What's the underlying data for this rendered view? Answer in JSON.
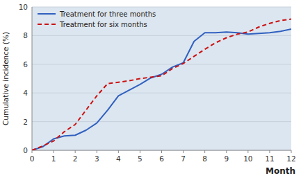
{
  "chart_data": {
    "type": "line",
    "xlabel": "Month",
    "ylabel": "Cumulative incidence (%)",
    "x": [
      0,
      0.5,
      1,
      1.5,
      2,
      2.5,
      3,
      3.5,
      4,
      4.5,
      5,
      5.5,
      6,
      6.5,
      7,
      7.5,
      8,
      8.5,
      9,
      9.5,
      10,
      10.5,
      11,
      11.5,
      12
    ],
    "series": [
      {
        "name": "Treatment for three months",
        "color": "#3060c0",
        "line_style": "solid",
        "values": [
          0,
          0.25,
          0.8,
          1.0,
          1.05,
          1.4,
          1.9,
          2.8,
          3.8,
          4.2,
          4.6,
          5.05,
          5.3,
          5.8,
          6.1,
          7.6,
          8.2,
          8.2,
          8.25,
          8.2,
          8.1,
          8.15,
          8.2,
          8.3,
          8.45
        ]
      },
      {
        "name": "Treatment for six months",
        "color": "#cc1111",
        "line_style": "dashed",
        "values": [
          0,
          0.3,
          0.65,
          1.3,
          1.8,
          2.8,
          3.8,
          4.65,
          4.75,
          4.85,
          5.0,
          5.1,
          5.2,
          5.7,
          6.05,
          6.55,
          7.05,
          7.5,
          7.85,
          8.1,
          8.25,
          8.6,
          8.85,
          9.05,
          9.15
        ]
      }
    ],
    "xlim": [
      0,
      12
    ],
    "ylim": [
      0,
      10
    ],
    "xticks": [
      0,
      1,
      2,
      3,
      4,
      5,
      6,
      7,
      8,
      9,
      10,
      11,
      12
    ],
    "yticks": [
      0,
      2,
      4,
      6,
      8,
      10
    ],
    "grid": true,
    "legend": "upper left"
  }
}
